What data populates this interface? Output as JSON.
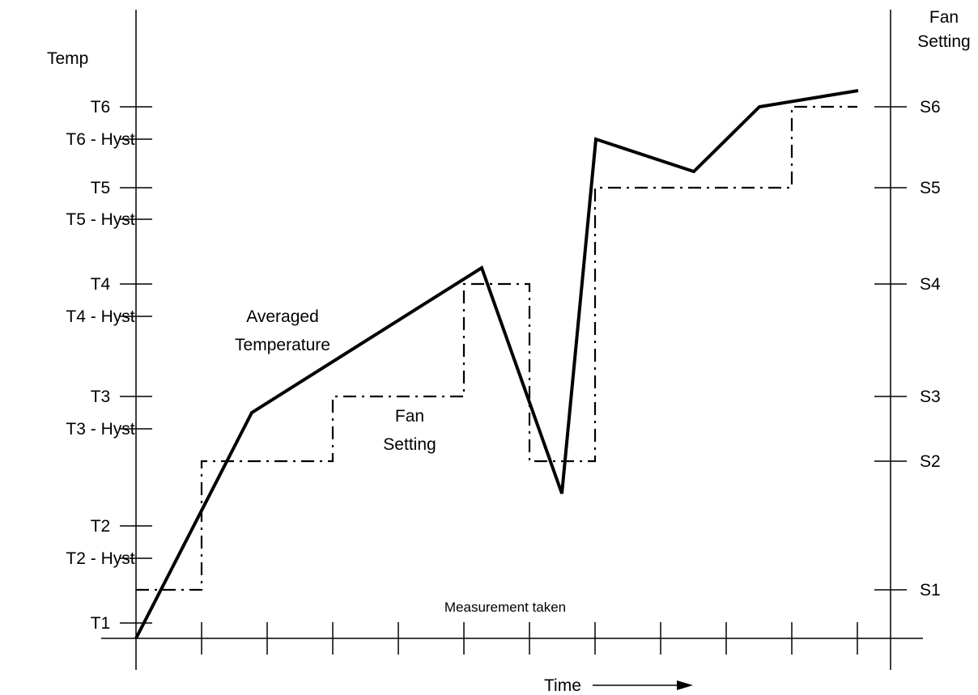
{
  "left_axis": {
    "title": "Temp",
    "ticks": [
      {
        "label": "T6",
        "key": "T6"
      },
      {
        "label": "T6 - Hyst",
        "key": "T6H"
      },
      {
        "label": "T5",
        "key": "T5"
      },
      {
        "label": "T5 - Hyst",
        "key": "T5H"
      },
      {
        "label": "T4",
        "key": "T4"
      },
      {
        "label": "T4 - Hyst",
        "key": "T4H"
      },
      {
        "label": "T3",
        "key": "T3"
      },
      {
        "label": "T3 - Hyst",
        "key": "T3H"
      },
      {
        "label": "T2",
        "key": "T2"
      },
      {
        "label": "T2 - Hyst",
        "key": "T2H"
      },
      {
        "label": "T1",
        "key": "T1"
      }
    ]
  },
  "right_axis": {
    "title_line1": "Fan",
    "title_line2": "Setting",
    "ticks": [
      {
        "label": "S6",
        "key": "S6"
      },
      {
        "label": "S5",
        "key": "S5"
      },
      {
        "label": "S4",
        "key": "S4"
      },
      {
        "label": "S3",
        "key": "S3"
      },
      {
        "label": "S2",
        "key": "S2"
      },
      {
        "label": "S1",
        "key": "S1"
      }
    ]
  },
  "x_axis": {
    "label": "Time",
    "tick_label": "Measurement taken",
    "measurement_count": 11
  },
  "series": {
    "temperature": {
      "label_line1": "Averaged",
      "label_line2": "Temperature",
      "points": [
        [
          0,
          "T0"
        ],
        [
          2,
          "T3-"
        ],
        [
          5,
          "T4+"
        ],
        [
          6.5,
          "T1.5"
        ],
        [
          7,
          "T6-"
        ],
        [
          8.5,
          "T5+"
        ],
        [
          9.5,
          "T6"
        ],
        [
          11,
          "T6+"
        ]
      ]
    },
    "fan_setting": {
      "label_line1": "Fan",
      "label_line2": "Setting",
      "steps": [
        [
          "S1",
          0,
          1
        ],
        [
          "S2",
          1,
          3
        ],
        [
          "S3",
          3,
          5
        ],
        [
          "S4",
          5,
          6
        ],
        [
          "S2",
          6,
          7
        ],
        [
          "S5",
          7,
          10
        ],
        [
          "S6",
          10,
          11
        ]
      ]
    }
  }
}
